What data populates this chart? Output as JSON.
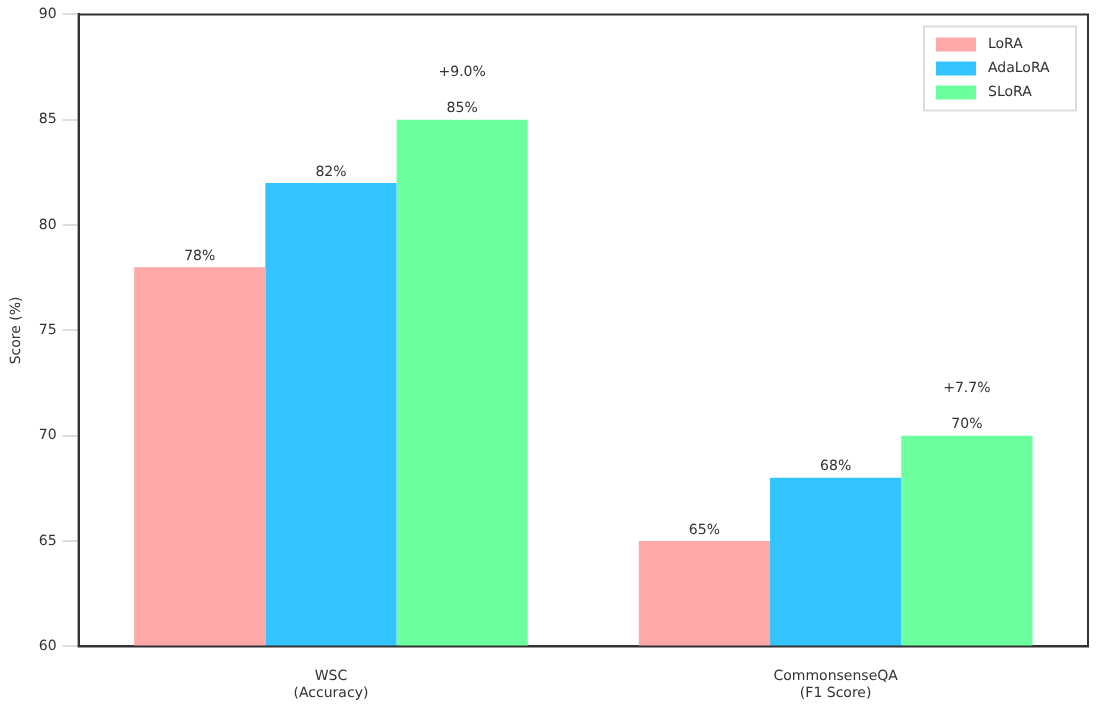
{
  "chart_data": {
    "type": "bar",
    "ylabel": "Score (%)",
    "categories": [
      "WSC\n(Accuracy)",
      "CommonsenseQA\n(F1 Score)"
    ],
    "series": [
      {
        "name": "LoRA",
        "color": "#ffa8a8",
        "values": [
          78,
          65
        ],
        "value_labels": [
          "78%",
          "65%"
        ]
      },
      {
        "name": "AdaLoRA",
        "color": "#33c4ff",
        "values": [
          82,
          68
        ],
        "value_labels": [
          "82%",
          "68%"
        ]
      },
      {
        "name": "SLoRA",
        "color": "#6cff9e",
        "values": [
          85,
          70
        ],
        "value_labels": [
          "85%",
          "70%"
        ]
      }
    ],
    "annotations": [
      "+9.0%",
      "+7.7%"
    ],
    "ylim": [
      60,
      90
    ],
    "yticks": [
      60,
      65,
      70,
      75,
      80,
      85,
      90
    ],
    "grid": false,
    "legend": "top right"
  }
}
